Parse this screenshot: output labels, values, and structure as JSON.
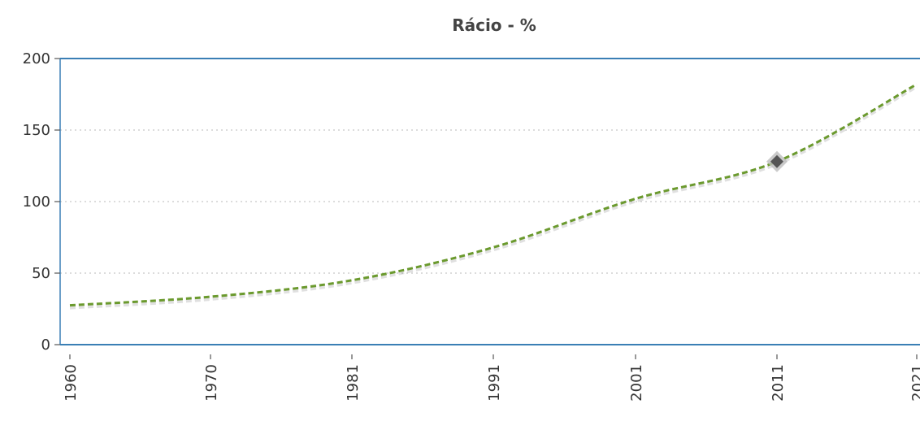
{
  "chart_data": {
    "type": "line",
    "title": "Rácio - %",
    "xlabel": "",
    "ylabel": "",
    "x": [
      1960,
      1970,
      1981,
      1991,
      2001,
      2011,
      2021
    ],
    "x_labels": [
      "1960",
      "1970",
      "1981",
      "1991",
      "2001",
      "2011",
      "2021"
    ],
    "series": [
      {
        "values": [
          27.5,
          33.5,
          45,
          68,
          102,
          128,
          182
        ]
      }
    ],
    "highlight": {
      "x": 2011,
      "y": 128
    },
    "y_ticks": [
      "0",
      "50",
      "100",
      "150",
      "200"
    ],
    "ylim": [
      0,
      200
    ],
    "grid": true,
    "legend": "none",
    "colors": {
      "series": "#6b9a2e",
      "axis": "#3a7fb5",
      "marker": "#555555",
      "marker_halo": "#bdbdbd"
    }
  }
}
